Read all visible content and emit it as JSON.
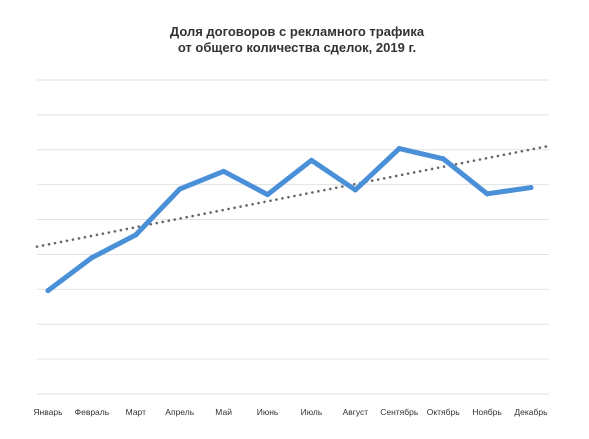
{
  "chart_data": {
    "type": "line",
    "title_lines": [
      "Доля договоров с рекламного трафика",
      "от общего количества сделок, 2019 г."
    ],
    "xlabel": "",
    "ylabel": "",
    "categories": [
      "Январь",
      "Февраль",
      "Март",
      "Апрель",
      "Май",
      "Июнь",
      "Июль",
      "Август",
      "Сентябрь",
      "Октябрь",
      "Ноябрь",
      "Декабрь"
    ],
    "series": [
      {
        "values": [
          19.5,
          32.1,
          40.8,
          58.3,
          65.1,
          56.2,
          69.3,
          58.0,
          73.8,
          69.9,
          56.5,
          58.9
        ]
      }
    ],
    "trendline": {
      "type": "linear",
      "start": 36.3,
      "end": 74.8
    },
    "ylim": [
      -20,
      100
    ],
    "gridline_count": 10,
    "grid": true,
    "legend": "none",
    "colors": {
      "series": "#4a90d9",
      "trend": "#666666",
      "grid": "#e2e2e2"
    }
  }
}
